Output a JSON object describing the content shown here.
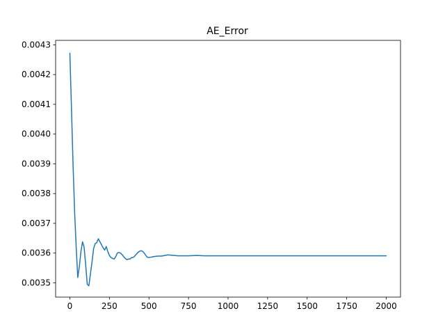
{
  "chart_data": {
    "type": "line",
    "title": "AE_Error",
    "xlabel": "",
    "ylabel": "",
    "xlim": [
      -90,
      2090
    ],
    "ylim": [
      0.003452,
      0.004315
    ],
    "xticks": [
      0,
      250,
      500,
      750,
      1000,
      1250,
      1500,
      1750,
      2000
    ],
    "xtick_labels": [
      "0",
      "250",
      "500",
      "750",
      "1000",
      "1250",
      "1500",
      "1750",
      "2000"
    ],
    "yticks": [
      0.0035,
      0.0036,
      0.0037,
      0.0038,
      0.0039,
      0.004,
      0.0041,
      0.0042,
      0.0043
    ],
    "ytick_labels": [
      "0.0035",
      "0.0036",
      "0.0037",
      "0.0038",
      "0.0039",
      "0.0040",
      "0.0041",
      "0.0042",
      "0.0043"
    ],
    "grid": false,
    "colors": {
      "line": "#1f77b4",
      "axes": "#000000",
      "background": "#ffffff"
    },
    "series": [
      {
        "x": [
          0,
          10,
          20,
          30,
          40,
          50,
          60,
          70,
          80,
          90,
          100,
          110,
          120,
          130,
          140,
          150,
          160,
          170,
          180,
          190,
          200,
          210,
          220,
          230,
          240,
          250,
          260,
          270,
          280,
          290,
          300,
          310,
          320,
          330,
          340,
          350,
          360,
          370,
          380,
          390,
          400,
          410,
          420,
          430,
          440,
          450,
          460,
          470,
          480,
          490,
          500,
          510,
          520,
          540,
          560,
          580,
          600,
          620,
          640,
          660,
          680,
          700,
          750,
          800,
          850,
          900,
          950,
          1000,
          1100,
          1200,
          1300,
          1400,
          1500,
          1600,
          1700,
          1800,
          1900,
          2000
        ],
        "values": [
          0.004272,
          0.00409,
          0.0039,
          0.00374,
          0.00362,
          0.003518,
          0.003555,
          0.003605,
          0.003638,
          0.00362,
          0.00356,
          0.003495,
          0.00349,
          0.00353,
          0.00357,
          0.003615,
          0.003632,
          0.003635,
          0.003648,
          0.003638,
          0.003628,
          0.003618,
          0.00361,
          0.003622,
          0.003605,
          0.003592,
          0.003585,
          0.003582,
          0.00358,
          0.003588,
          0.0036,
          0.003602,
          0.0036,
          0.003595,
          0.003588,
          0.003582,
          0.003578,
          0.00358,
          0.00358,
          0.003585,
          0.003585,
          0.00359,
          0.003596,
          0.003602,
          0.003606,
          0.003608,
          0.003606,
          0.0036,
          0.003592,
          0.003586,
          0.003585,
          0.003586,
          0.003587,
          0.003589,
          0.00359,
          0.00359,
          0.003592,
          0.003594,
          0.003593,
          0.003592,
          0.003591,
          0.003591,
          0.003591,
          0.003592,
          0.003591,
          0.003591,
          0.003591,
          0.003591,
          0.003591,
          0.003591,
          0.003591,
          0.003591,
          0.003591,
          0.003591,
          0.003591,
          0.003591,
          0.003591,
          0.003591
        ]
      }
    ]
  }
}
